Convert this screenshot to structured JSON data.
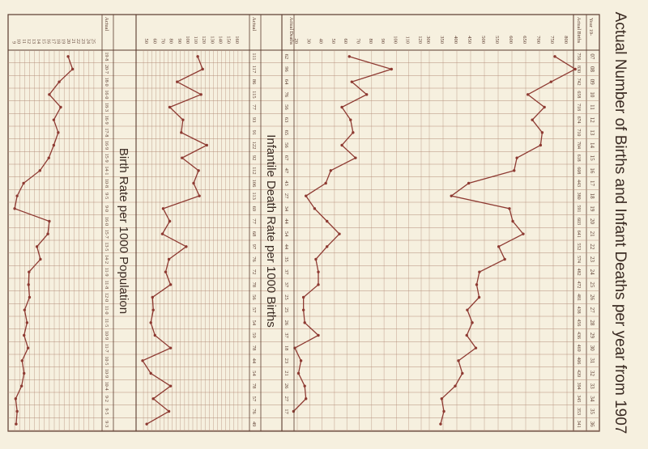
{
  "main_title": "Actual Number of Births and Infant Deaths per year from 1907",
  "header": {
    "year_label": "Year 19-",
    "years": [
      "07",
      "08",
      "09",
      "10",
      "11",
      "12",
      "13",
      "14",
      "15",
      "16",
      "17",
      "18",
      "19",
      "20",
      "21",
      "22",
      "23",
      "24",
      "25",
      "26",
      "27",
      "28",
      "29",
      "30",
      "31",
      "32",
      "33",
      "34",
      "35",
      "36"
    ],
    "births_label": "Actual Births",
    "births": [
      "756",
      "830",
      "742",
      "658",
      "718",
      "674",
      "710",
      "704",
      "618",
      "608",
      "443",
      "380",
      "591",
      "603",
      "641",
      "552",
      "574",
      "482",
      "472",
      "481",
      "438",
      "456",
      "436",
      "469",
      "406",
      "420",
      "394",
      "345",
      "353",
      "341"
    ]
  },
  "panels": {
    "counts": {
      "deaths_label": "Actual Deaths",
      "deaths": [
        "62",
        "96",
        "64",
        "76",
        "56",
        "63",
        "65",
        "56",
        "67",
        "47",
        "43",
        "27",
        "34",
        "44",
        "54",
        "44",
        "35",
        "37",
        "37",
        "25",
        "25",
        "26",
        "37",
        "18",
        "23",
        "21",
        "26",
        "27",
        "17",
        ""
      ]
    },
    "imr": {
      "title": "Infantile Death Rate per 1000 Births",
      "actual_label": "Actual",
      "actual": [
        "111",
        "117",
        "86",
        "115",
        "77",
        "93",
        "91",
        "122",
        "92",
        "112",
        "106",
        "113",
        "69",
        "77",
        "68",
        "97",
        "76",
        "72",
        "78",
        "56",
        "57",
        "54",
        "59",
        "78",
        "44",
        "54",
        "78",
        "57",
        "76",
        "49"
      ]
    },
    "birth_rate": {
      "title": "Birth Rate per 1000 Population",
      "actual_label": "Actual",
      "actual": [
        "19·8",
        "20·7",
        "18·0",
        "16·0",
        "18·3",
        "16·9",
        "17·8",
        "16·9",
        "15·9",
        "14·1",
        "10·8",
        "9·5",
        "9·0",
        "16·0",
        "15·7",
        "13·5",
        "14·2",
        "11·9",
        "11·8",
        "12·0",
        "11·0",
        "11·5",
        "10·9",
        "11·7",
        "10·5",
        "10·9",
        "10·4",
        "9·2",
        "9·5",
        "9·3"
      ]
    }
  },
  "colors": {
    "line": "#8e3a32",
    "grid": "#b48c78",
    "paper": "#f6f0df",
    "ink": "#5a3a2e"
  },
  "chart_data": [
    {
      "type": "line",
      "title": "Actual Number of Births and Infant Deaths per year from 1907",
      "x": [
        1907,
        1908,
        1909,
        1910,
        1911,
        1912,
        1913,
        1914,
        1915,
        1916,
        1917,
        1918,
        1919,
        1920,
        1921,
        1922,
        1923,
        1924,
        1925,
        1926,
        1927,
        1928,
        1929,
        1930,
        1931,
        1932,
        1933,
        1934,
        1935,
        1936
      ],
      "ylim_births": [
        300,
        800
      ],
      "ylim_deaths": [
        20,
        120
      ],
      "y_ticks_births": [
        "800",
        "750",
        "700",
        "650",
        "600",
        "550",
        "500",
        "450",
        "400",
        "350",
        "300"
      ],
      "y_ticks_deaths": [
        "120",
        "110",
        "100",
        "90",
        "80",
        "70",
        "60",
        "50",
        "40",
        "30",
        "20"
      ],
      "series": [
        {
          "name": "Actual Births",
          "values": [
            756,
            830,
            742,
            658,
            718,
            674,
            710,
            704,
            618,
            608,
            443,
            380,
            591,
            603,
            641,
            552,
            574,
            482,
            472,
            481,
            438,
            456,
            436,
            469,
            406,
            420,
            394,
            345,
            353,
            341
          ]
        },
        {
          "name": "Actual Deaths",
          "values": [
            62,
            96,
            64,
            76,
            56,
            63,
            65,
            56,
            67,
            47,
            43,
            27,
            34,
            44,
            54,
            44,
            35,
            37,
            37,
            25,
            25,
            26,
            37,
            18,
            23,
            21,
            26,
            27,
            17,
            null
          ]
        }
      ]
    },
    {
      "type": "line",
      "title": "Infantile Death Rate per 1000 Births",
      "x": [
        1907,
        1908,
        1909,
        1910,
        1911,
        1912,
        1913,
        1914,
        1915,
        1916,
        1917,
        1918,
        1919,
        1920,
        1921,
        1922,
        1923,
        1924,
        1925,
        1926,
        1927,
        1928,
        1929,
        1930,
        1931,
        1932,
        1933,
        1934,
        1935,
        1936
      ],
      "ylim": [
        40,
        170
      ],
      "y_ticks": [
        "160",
        "150",
        "140",
        "130",
        "120",
        "110",
        "100",
        "90",
        "80",
        "70",
        "60",
        "50"
      ],
      "series": [
        {
          "name": "Actual",
          "values": [
            111,
            117,
            86,
            115,
            77,
            93,
            91,
            122,
            92,
            112,
            106,
            113,
            69,
            77,
            68,
            97,
            76,
            72,
            78,
            56,
            57,
            54,
            59,
            78,
            44,
            54,
            78,
            57,
            76,
            49
          ]
        }
      ]
    },
    {
      "type": "line",
      "title": "Birth Rate per 1000 Population",
      "x": [
        1907,
        1908,
        1909,
        1910,
        1911,
        1912,
        1913,
        1914,
        1915,
        1916,
        1917,
        1918,
        1919,
        1920,
        1921,
        1922,
        1923,
        1924,
        1925,
        1926,
        1927,
        1928,
        1929,
        1930,
        1931,
        1932,
        1933,
        1934,
        1935,
        1936
      ],
      "ylim": [
        8,
        26
      ],
      "y_ticks": [
        "25",
        "24",
        "23",
        "22",
        "21",
        "20",
        "19",
        "18",
        "17",
        "16",
        "15",
        "14",
        "13",
        "12",
        "11",
        "10",
        "9"
      ],
      "series": [
        {
          "name": "Actual",
          "values": [
            19.8,
            20.7,
            18.0,
            16.0,
            18.3,
            16.9,
            17.8,
            16.9,
            15.9,
            14.1,
            10.8,
            9.5,
            9.0,
            16.0,
            15.7,
            13.5,
            14.2,
            11.9,
            11.8,
            12.0,
            11.0,
            11.5,
            10.9,
            11.7,
            10.5,
            10.9,
            10.4,
            9.2,
            9.5,
            9.3
          ]
        }
      ]
    }
  ]
}
